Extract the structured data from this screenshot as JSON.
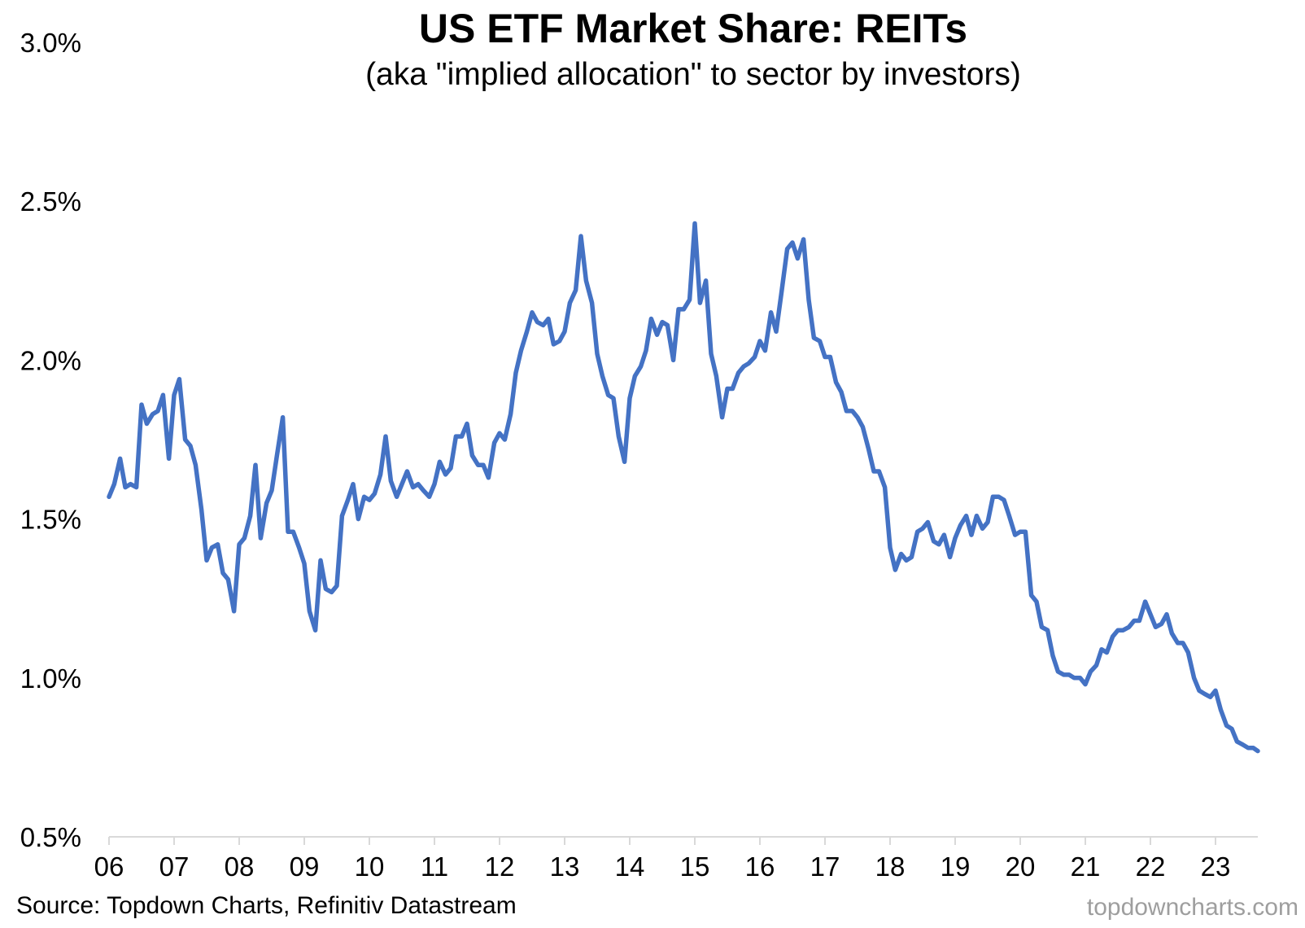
{
  "chart_data": {
    "type": "line",
    "title": "US ETF Market Share: REITs",
    "subtitle": "(aka \"implied allocation\" to sector by investors)",
    "xlabel": "",
    "ylabel": "",
    "ylim": [
      0.5,
      3.0
    ],
    "xlim": [
      2006.0,
      2023.65
    ],
    "y_ticks": [
      "3.0%",
      "2.5%",
      "2.0%",
      "1.5%",
      "1.0%",
      "0.5%"
    ],
    "y_tick_values": [
      3.0,
      2.5,
      2.0,
      1.5,
      1.0,
      0.5
    ],
    "x_ticks": [
      "06",
      "07",
      "08",
      "09",
      "10",
      "11",
      "12",
      "13",
      "14",
      "15",
      "16",
      "17",
      "18",
      "19",
      "20",
      "21",
      "22",
      "23"
    ],
    "x_tick_values": [
      2006,
      2007,
      2008,
      2009,
      2010,
      2011,
      2012,
      2013,
      2014,
      2015,
      2016,
      2017,
      2018,
      2019,
      2020,
      2021,
      2022,
      2023
    ],
    "grid": false,
    "legend": "none",
    "source": "Source: Topdown Charts, Refinitiv Datastream",
    "watermark": "topdowncharts.com",
    "colors": {
      "line": "#4472C4",
      "axis": "#d9d9d9"
    },
    "series": [
      {
        "x": [
          2006.0,
          2006.08,
          2006.17,
          2006.25,
          2006.33,
          2006.42,
          2006.5,
          2006.58,
          2006.67,
          2006.75,
          2006.83,
          2006.92,
          2007.0,
          2007.08,
          2007.17,
          2007.25,
          2007.33,
          2007.42,
          2007.5,
          2007.58,
          2007.67,
          2007.75,
          2007.83,
          2007.92,
          2008.0,
          2008.08,
          2008.17,
          2008.25,
          2008.33,
          2008.42,
          2008.5,
          2008.58,
          2008.67,
          2008.75,
          2008.83,
          2008.92,
          2009.0,
          2009.08,
          2009.17,
          2009.25,
          2009.33,
          2009.42,
          2009.5,
          2009.58,
          2009.67,
          2009.75,
          2009.83,
          2009.92,
          2010.0,
          2010.08,
          2010.17,
          2010.25,
          2010.33,
          2010.42,
          2010.5,
          2010.58,
          2010.67,
          2010.75,
          2010.83,
          2010.92,
          2011.0,
          2011.08,
          2011.17,
          2011.25,
          2011.33,
          2011.42,
          2011.5,
          2011.58,
          2011.67,
          2011.75,
          2011.83,
          2011.92,
          2012.0,
          2012.08,
          2012.17,
          2012.25,
          2012.33,
          2012.42,
          2012.5,
          2012.58,
          2012.67,
          2012.75,
          2012.83,
          2012.92,
          2013.0,
          2013.08,
          2013.17,
          2013.25,
          2013.33,
          2013.42,
          2013.5,
          2013.58,
          2013.67,
          2013.75,
          2013.83,
          2013.92,
          2014.0,
          2014.08,
          2014.17,
          2014.25,
          2014.33,
          2014.42,
          2014.5,
          2014.58,
          2014.67,
          2014.75,
          2014.83,
          2014.92,
          2015.0,
          2015.08,
          2015.17,
          2015.25,
          2015.33,
          2015.42,
          2015.5,
          2015.58,
          2015.67,
          2015.75,
          2015.83,
          2015.92,
          2016.0,
          2016.08,
          2016.17,
          2016.25,
          2016.33,
          2016.42,
          2016.5,
          2016.58,
          2016.67,
          2016.75,
          2016.83,
          2016.92,
          2017.0,
          2017.08,
          2017.17,
          2017.25,
          2017.33,
          2017.42,
          2017.5,
          2017.58,
          2017.67,
          2017.75,
          2017.83,
          2017.92,
          2018.0,
          2018.08,
          2018.17,
          2018.25,
          2018.33,
          2018.42,
          2018.5,
          2018.58,
          2018.67,
          2018.75,
          2018.83,
          2018.92,
          2019.0,
          2019.08,
          2019.17,
          2019.25,
          2019.33,
          2019.42,
          2019.5,
          2019.58,
          2019.67,
          2019.75,
          2019.83,
          2019.92,
          2020.0,
          2020.08,
          2020.17,
          2020.25,
          2020.33,
          2020.42,
          2020.5,
          2020.58,
          2020.67,
          2020.75,
          2020.83,
          2020.92,
          2021.0,
          2021.08,
          2021.17,
          2021.25,
          2021.33,
          2021.42,
          2021.5,
          2021.58,
          2021.67,
          2021.75,
          2021.83,
          2021.92,
          2022.0,
          2022.08,
          2022.17,
          2022.25,
          2022.33,
          2022.42,
          2022.5,
          2022.58,
          2022.67,
          2022.75,
          2022.83,
          2022.92,
          2023.0,
          2023.08,
          2023.17,
          2023.25,
          2023.33,
          2023.42,
          2023.5,
          2023.58,
          2023.65
        ],
        "values": [
          1.57,
          1.61,
          1.69,
          1.6,
          1.61,
          1.6,
          1.86,
          1.8,
          1.83,
          1.84,
          1.89,
          1.69,
          1.89,
          1.94,
          1.75,
          1.73,
          1.67,
          1.53,
          1.37,
          1.41,
          1.42,
          1.33,
          1.31,
          1.21,
          1.42,
          1.44,
          1.51,
          1.67,
          1.44,
          1.55,
          1.59,
          1.7,
          1.82,
          1.46,
          1.46,
          1.41,
          1.36,
          1.21,
          1.15,
          1.37,
          1.28,
          1.27,
          1.29,
          1.51,
          1.56,
          1.61,
          1.5,
          1.57,
          1.56,
          1.58,
          1.64,
          1.76,
          1.62,
          1.57,
          1.61,
          1.65,
          1.6,
          1.61,
          1.59,
          1.57,
          1.61,
          1.68,
          1.64,
          1.66,
          1.76,
          1.76,
          1.8,
          1.7,
          1.67,
          1.67,
          1.63,
          1.74,
          1.77,
          1.75,
          1.83,
          1.96,
          2.03,
          2.09,
          2.15,
          2.12,
          2.11,
          2.13,
          2.05,
          2.06,
          2.09,
          2.18,
          2.22,
          2.39,
          2.25,
          2.18,
          2.02,
          1.95,
          1.89,
          1.88,
          1.76,
          1.68,
          1.88,
          1.95,
          1.98,
          2.03,
          2.13,
          2.08,
          2.12,
          2.11,
          2.0,
          2.16,
          2.16,
          2.19,
          2.43,
          2.18,
          2.25,
          2.02,
          1.95,
          1.82,
          1.91,
          1.91,
          1.96,
          1.98,
          1.99,
          2.01,
          2.06,
          2.03,
          2.15,
          2.09,
          2.21,
          2.35,
          2.37,
          2.32,
          2.38,
          2.19,
          2.07,
          2.06,
          2.01,
          2.01,
          1.93,
          1.9,
          1.84,
          1.84,
          1.82,
          1.79,
          1.72,
          1.65,
          1.65,
          1.6,
          1.41,
          1.34,
          1.39,
          1.37,
          1.38,
          1.46,
          1.47,
          1.49,
          1.43,
          1.42,
          1.45,
          1.38,
          1.44,
          1.48,
          1.51,
          1.45,
          1.51,
          1.47,
          1.49,
          1.57,
          1.57,
          1.56,
          1.51,
          1.45,
          1.46,
          1.46,
          1.26,
          1.24,
          1.16,
          1.15,
          1.07,
          1.02,
          1.01,
          1.01,
          1.0,
          1.0,
          0.98,
          1.02,
          1.04,
          1.09,
          1.08,
          1.13,
          1.15,
          1.15,
          1.16,
          1.18,
          1.18,
          1.24,
          1.2,
          1.16,
          1.17,
          1.2,
          1.14,
          1.11,
          1.11,
          1.08,
          1.0,
          0.96,
          0.95,
          0.94,
          0.96,
          0.9,
          0.85,
          0.84,
          0.8,
          0.79,
          0.78,
          0.78,
          0.77
        ]
      }
    ]
  }
}
